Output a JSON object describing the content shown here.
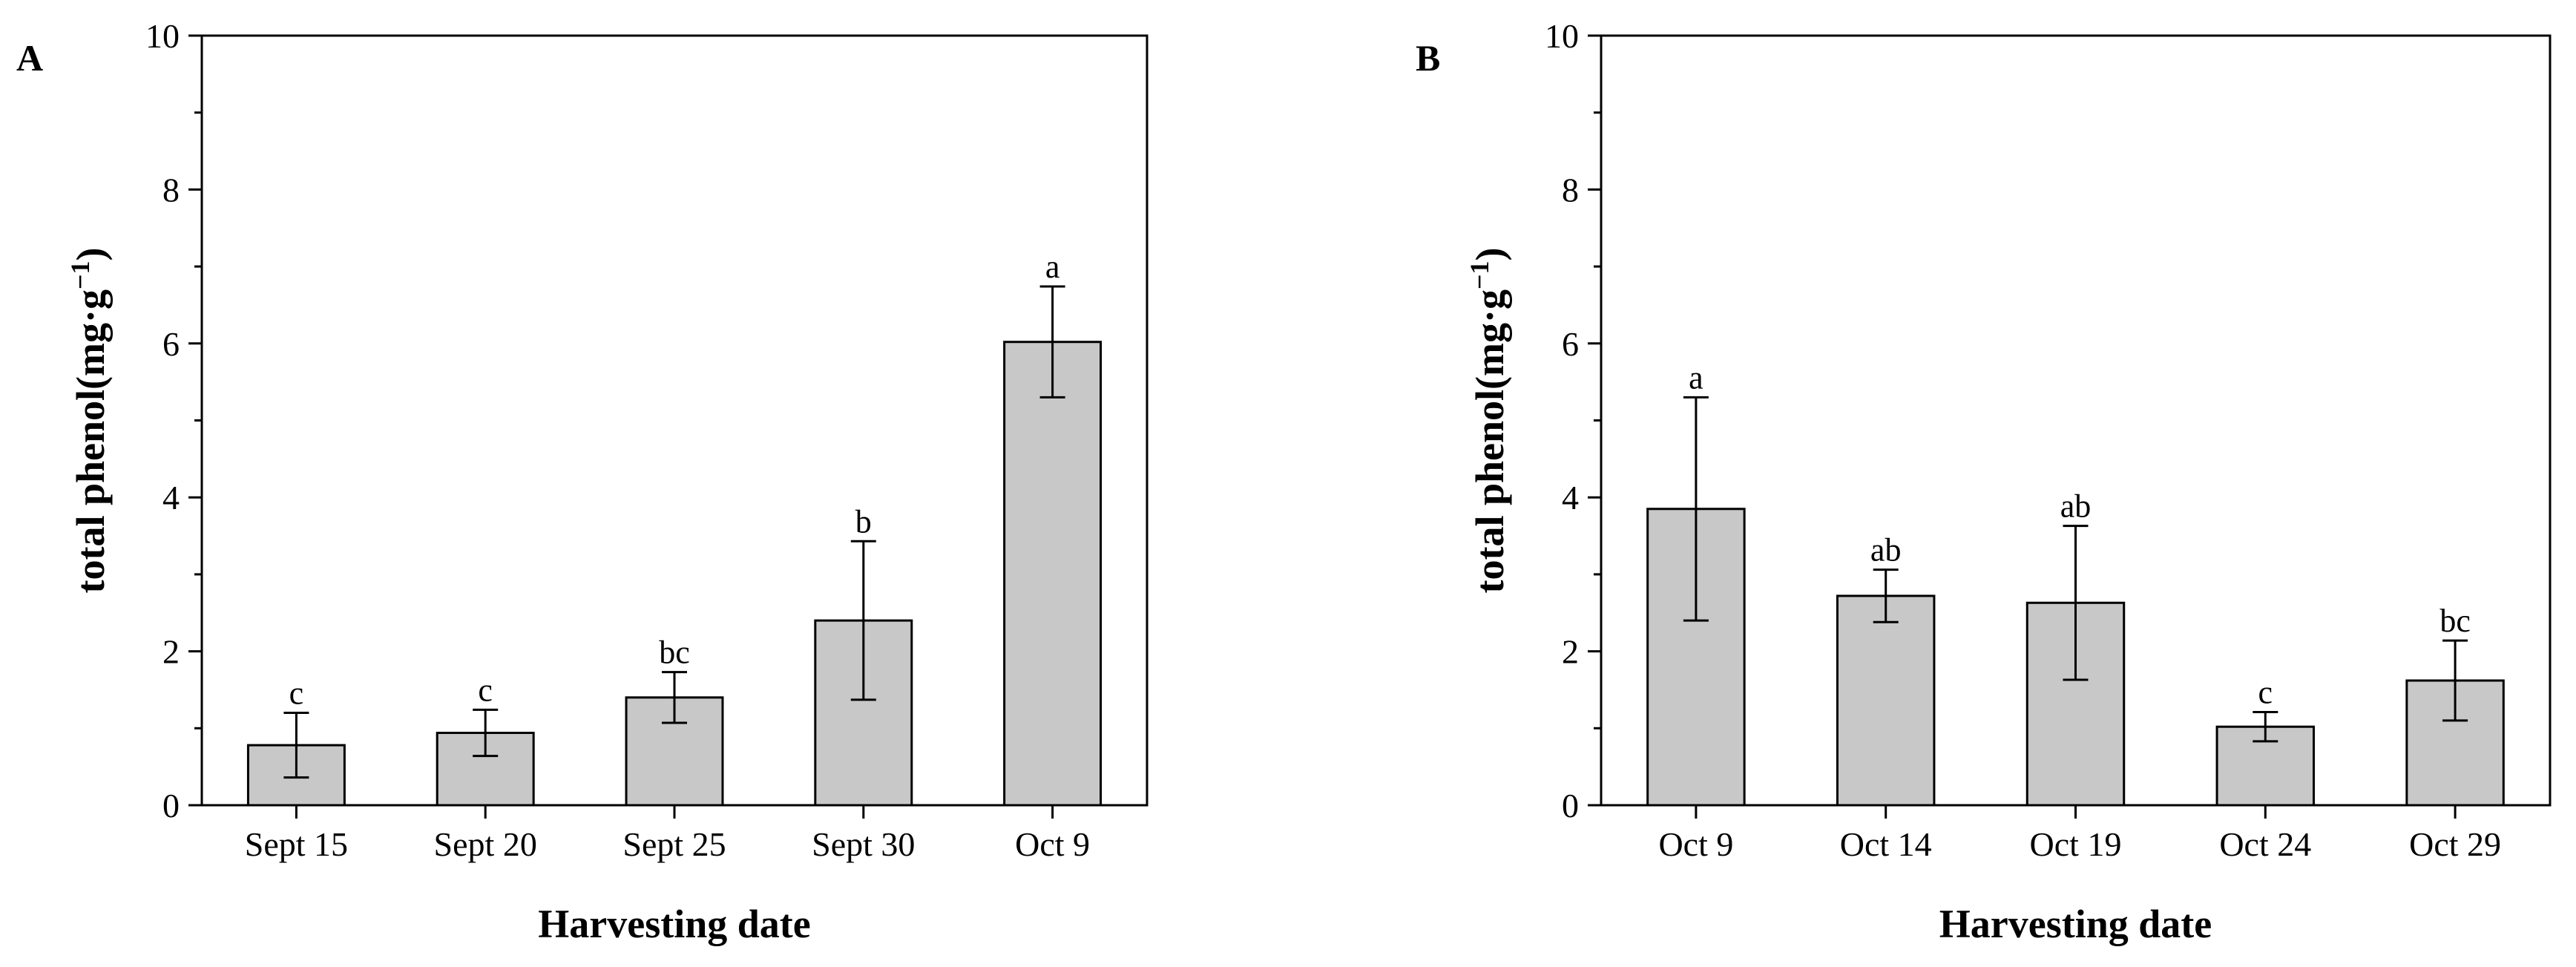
{
  "chart_data": [
    {
      "type": "bar",
      "panel_label": "A",
      "categories": [
        "Sept 15",
        "Sept 20",
        "Sept 25",
        "Sept 30",
        "Oct 9"
      ],
      "values": [
        0.78,
        0.94,
        1.4,
        2.4,
        6.02
      ],
      "errors": [
        0.42,
        0.3,
        0.33,
        1.03,
        0.72
      ],
      "significance": [
        "c",
        "c",
        "bc",
        "b",
        "a"
      ],
      "xlabel": "Harvesting date",
      "ylabel": "total phenol(mg·g",
      "ylabel_sup": "−1",
      "ylabel_close": ")",
      "ylim": [
        0,
        10
      ],
      "yticks": [
        "0",
        "2",
        "4",
        "6",
        "8",
        "10"
      ],
      "bar_color": "#c8c8c8"
    },
    {
      "type": "bar",
      "panel_label": "B",
      "categories": [
        "Oct 9",
        "Oct 14",
        "Oct 19",
        "Oct 24",
        "Oct 29"
      ],
      "values": [
        3.85,
        2.72,
        2.63,
        1.02,
        1.62
      ],
      "errors": [
        1.45,
        0.34,
        1.0,
        0.19,
        0.52
      ],
      "significance": [
        "a",
        "ab",
        "ab",
        "c",
        "bc"
      ],
      "xlabel": "Harvesting date",
      "ylabel": "total phenol(mg·g",
      "ylabel_sup": "−1",
      "ylabel_close": ")",
      "ylim": [
        0,
        10
      ],
      "yticks": [
        "0",
        "2",
        "4",
        "6",
        "8",
        "10"
      ],
      "bar_color": "#c8c8c8"
    }
  ]
}
